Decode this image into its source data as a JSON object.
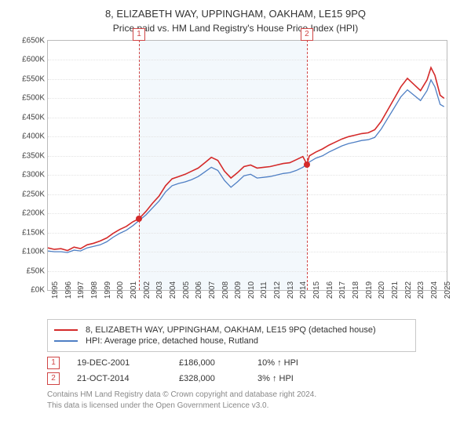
{
  "title": "8, ELIZABETH WAY, UPPINGHAM, OAKHAM, LE15 9PQ",
  "subtitle": "Price paid vs. HM Land Registry's House Price Index (HPI)",
  "chart": {
    "type": "line",
    "xlim": [
      1995,
      2025.5
    ],
    "ylim": [
      0,
      650
    ],
    "ytick_step": 50,
    "y_prefix": "£",
    "y_suffix": "K",
    "x_ticks": [
      1995,
      1996,
      1997,
      1998,
      1999,
      2000,
      2001,
      2002,
      2003,
      2004,
      2005,
      2006,
      2007,
      2008,
      2009,
      2010,
      2011,
      2012,
      2013,
      2014,
      2015,
      2016,
      2017,
      2018,
      2019,
      2020,
      2021,
      2022,
      2023,
      2024,
      2025
    ],
    "background_color": "#ffffff",
    "grid_color": "#e3e3e3",
    "band_color": "#e9f2fa",
    "band_range": [
      2001.97,
      2014.81
    ],
    "series": [
      {
        "name": "8, ELIZABETH WAY, UPPINGHAM, OAKHAM, LE15 9PQ (detached house)",
        "color": "#d42a2a",
        "width": 1.6,
        "data": [
          [
            1995.0,
            110
          ],
          [
            1995.5,
            106
          ],
          [
            1996.0,
            108
          ],
          [
            1996.5,
            103
          ],
          [
            1997.0,
            112
          ],
          [
            1997.5,
            108
          ],
          [
            1998.0,
            118
          ],
          [
            1998.5,
            122
          ],
          [
            1999.0,
            128
          ],
          [
            1999.5,
            136
          ],
          [
            2000.0,
            148
          ],
          [
            2000.5,
            158
          ],
          [
            2001.0,
            166
          ],
          [
            2001.5,
            178
          ],
          [
            2001.97,
            186
          ],
          [
            2002.5,
            205
          ],
          [
            2003.0,
            226
          ],
          [
            2003.5,
            245
          ],
          [
            2004.0,
            272
          ],
          [
            2004.5,
            290
          ],
          [
            2005.0,
            296
          ],
          [
            2005.5,
            302
          ],
          [
            2006.0,
            310
          ],
          [
            2006.5,
            318
          ],
          [
            2007.0,
            332
          ],
          [
            2007.5,
            346
          ],
          [
            2008.0,
            338
          ],
          [
            2008.5,
            310
          ],
          [
            2009.0,
            292
          ],
          [
            2009.5,
            306
          ],
          [
            2010.0,
            322
          ],
          [
            2010.5,
            326
          ],
          [
            2011.0,
            318
          ],
          [
            2011.5,
            320
          ],
          [
            2012.0,
            322
          ],
          [
            2012.5,
            326
          ],
          [
            2013.0,
            330
          ],
          [
            2013.5,
            332
          ],
          [
            2014.0,
            340
          ],
          [
            2014.5,
            348
          ],
          [
            2014.81,
            328
          ],
          [
            2015.0,
            350
          ],
          [
            2015.5,
            360
          ],
          [
            2016.0,
            368
          ],
          [
            2016.5,
            378
          ],
          [
            2017.0,
            386
          ],
          [
            2017.5,
            394
          ],
          [
            2018.0,
            400
          ],
          [
            2018.5,
            404
          ],
          [
            2019.0,
            408
          ],
          [
            2019.5,
            410
          ],
          [
            2020.0,
            418
          ],
          [
            2020.5,
            440
          ],
          [
            2021.0,
            470
          ],
          [
            2021.5,
            500
          ],
          [
            2022.0,
            530
          ],
          [
            2022.5,
            552
          ],
          [
            2023.0,
            536
          ],
          [
            2023.5,
            520
          ],
          [
            2024.0,
            548
          ],
          [
            2024.3,
            580
          ],
          [
            2024.6,
            560
          ],
          [
            2025.0,
            508
          ],
          [
            2025.3,
            500
          ]
        ]
      },
      {
        "name": "HPI: Average price, detached house, Rutland",
        "color": "#4f7fc4",
        "width": 1.3,
        "data": [
          [
            1995.0,
            102
          ],
          [
            1995.5,
            100
          ],
          [
            1996.0,
            100
          ],
          [
            1996.5,
            98
          ],
          [
            1997.0,
            104
          ],
          [
            1997.5,
            102
          ],
          [
            1998.0,
            110
          ],
          [
            1998.5,
            114
          ],
          [
            1999.0,
            118
          ],
          [
            1999.5,
            126
          ],
          [
            2000.0,
            138
          ],
          [
            2000.5,
            148
          ],
          [
            2001.0,
            156
          ],
          [
            2001.5,
            168
          ],
          [
            2002.0,
            182
          ],
          [
            2002.5,
            196
          ],
          [
            2003.0,
            214
          ],
          [
            2003.5,
            232
          ],
          [
            2004.0,
            256
          ],
          [
            2004.5,
            272
          ],
          [
            2005.0,
            278
          ],
          [
            2005.5,
            282
          ],
          [
            2006.0,
            288
          ],
          [
            2006.5,
            296
          ],
          [
            2007.0,
            308
          ],
          [
            2007.5,
            320
          ],
          [
            2008.0,
            312
          ],
          [
            2008.5,
            286
          ],
          [
            2009.0,
            268
          ],
          [
            2009.5,
            282
          ],
          [
            2010.0,
            298
          ],
          [
            2010.5,
            302
          ],
          [
            2011.0,
            292
          ],
          [
            2011.5,
            294
          ],
          [
            2012.0,
            296
          ],
          [
            2012.5,
            300
          ],
          [
            2013.0,
            304
          ],
          [
            2013.5,
            306
          ],
          [
            2014.0,
            312
          ],
          [
            2014.5,
            320
          ],
          [
            2015.0,
            334
          ],
          [
            2015.5,
            344
          ],
          [
            2016.0,
            350
          ],
          [
            2016.5,
            360
          ],
          [
            2017.0,
            368
          ],
          [
            2017.5,
            376
          ],
          [
            2018.0,
            382
          ],
          [
            2018.5,
            386
          ],
          [
            2019.0,
            390
          ],
          [
            2019.5,
            392
          ],
          [
            2020.0,
            398
          ],
          [
            2020.5,
            420
          ],
          [
            2021.0,
            448
          ],
          [
            2021.5,
            476
          ],
          [
            2022.0,
            504
          ],
          [
            2022.5,
            522
          ],
          [
            2023.0,
            508
          ],
          [
            2023.5,
            494
          ],
          [
            2024.0,
            520
          ],
          [
            2024.3,
            548
          ],
          [
            2024.6,
            530
          ],
          [
            2025.0,
            484
          ],
          [
            2025.3,
            478
          ]
        ]
      }
    ],
    "markers": [
      {
        "label": "1",
        "x": 2001.97,
        "y": 186,
        "color": "#d42a2a"
      },
      {
        "label": "2",
        "x": 2014.81,
        "y": 328,
        "color": "#d42a2a"
      }
    ]
  },
  "sales": [
    {
      "badge": "1",
      "date": "19-DEC-2001",
      "price": "£186,000",
      "diff": "10% ↑ HPI"
    },
    {
      "badge": "2",
      "date": "21-OCT-2014",
      "price": "£328,000",
      "diff": "3% ↑ HPI"
    }
  ],
  "footer_line1": "Contains HM Land Registry data © Crown copyright and database right 2024.",
  "footer_line2": "This data is licensed under the Open Government Licence v3.0."
}
